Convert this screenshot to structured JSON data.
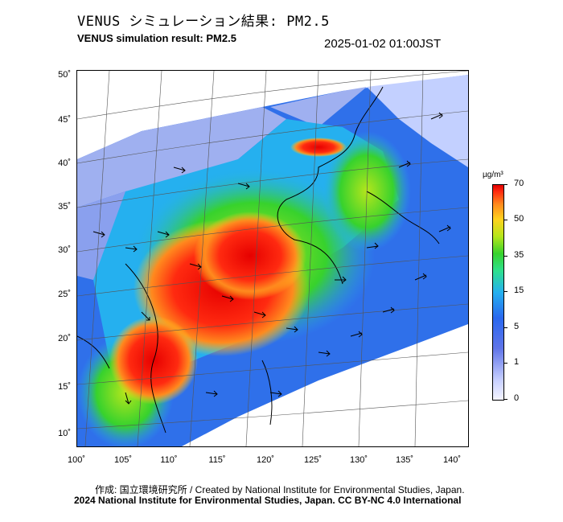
{
  "header": {
    "title_jp": "VENUS シミュレーション結果: PM2.5",
    "title_en": "VENUS simulation result: PM2.5",
    "timestamp": "2025-01-02 01:00JST"
  },
  "map": {
    "lat_ticks": [
      "50˚",
      "45˚",
      "40˚",
      "35˚",
      "30˚",
      "25˚",
      "20˚",
      "15˚",
      "10˚"
    ],
    "lon_ticks": [
      "100˚",
      "105˚",
      "110˚",
      "115˚",
      "120˚",
      "125˚",
      "130˚",
      "135˚",
      "140˚"
    ]
  },
  "colorbar": {
    "unit": "µg/m³",
    "labels": [
      "70",
      "50",
      "35",
      "15",
      "5",
      "1",
      "0"
    ]
  },
  "credits": {
    "line1": "作成: 国立環境研究所 / Created by National Institute for Environmental Studies, Japan.",
    "line2": "2024 National Institute for Environmental Studies, Japan. CC BY-NC 4.0 International"
  }
}
